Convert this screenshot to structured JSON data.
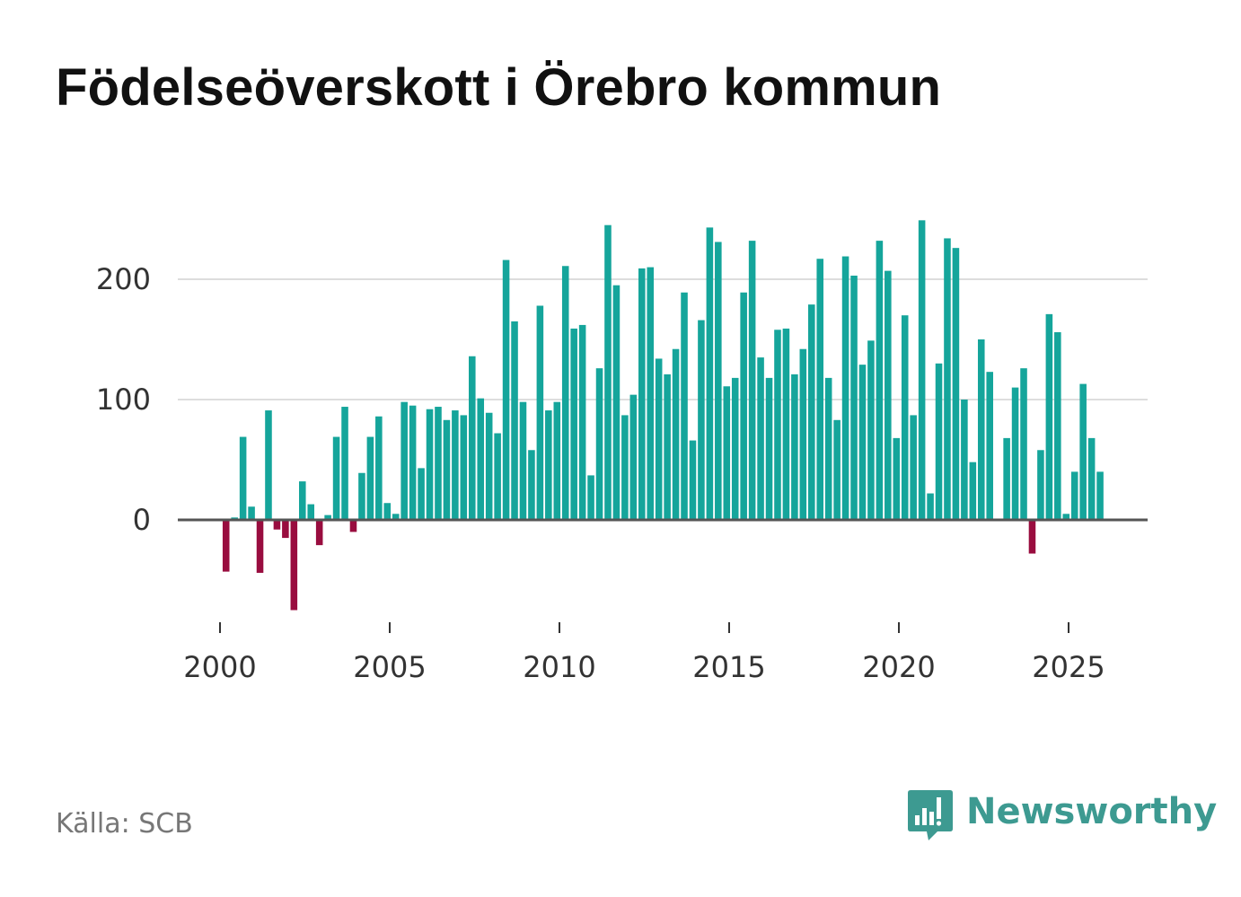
{
  "title": "Födelseöverskott i Örebro kommun",
  "source": "Källa: SCB",
  "brand": "Newsworthy",
  "colors": {
    "positive": "#15a59b",
    "negative": "#990d3f",
    "grid": "#dddddd",
    "zero": "#555555",
    "brand": "#3d9a91"
  },
  "chart_data": {
    "type": "bar",
    "title": "Födelseöverskott i Örebro kommun",
    "xlabel": "",
    "ylabel": "",
    "ylim": [
      -90,
      255
    ],
    "yticks": [
      0,
      100,
      200
    ],
    "xticks": [
      2000,
      2005,
      2010,
      2015,
      2020,
      2025
    ],
    "xlim": [
      1999.6,
      2027.3
    ],
    "period": "quarterly",
    "start": 2000.0,
    "values": [
      -43,
      2,
      69,
      11,
      -44,
      91,
      -8,
      -15,
      -75,
      32,
      13,
      -21,
      4,
      69,
      94,
      -10,
      39,
      69,
      86,
      14,
      5,
      98,
      95,
      43,
      92,
      94,
      83,
      91,
      87,
      136,
      101,
      89,
      72,
      216,
      165,
      98,
      58,
      178,
      91,
      98,
      211,
      159,
      162,
      37,
      126,
      245,
      195,
      87,
      104,
      209,
      210,
      134,
      121,
      142,
      189,
      66,
      166,
      243,
      231,
      111,
      118,
      189,
      232,
      135,
      118,
      158,
      159,
      121,
      142,
      179,
      217,
      118,
      83,
      219,
      203,
      129,
      149,
      232,
      207,
      68,
      170,
      87,
      249,
      22,
      130,
      234,
      226,
      100,
      48,
      150,
      123,
      null,
      68,
      110,
      126,
      -28,
      58,
      171,
      156,
      5,
      40,
      113,
      68,
      40
    ]
  }
}
